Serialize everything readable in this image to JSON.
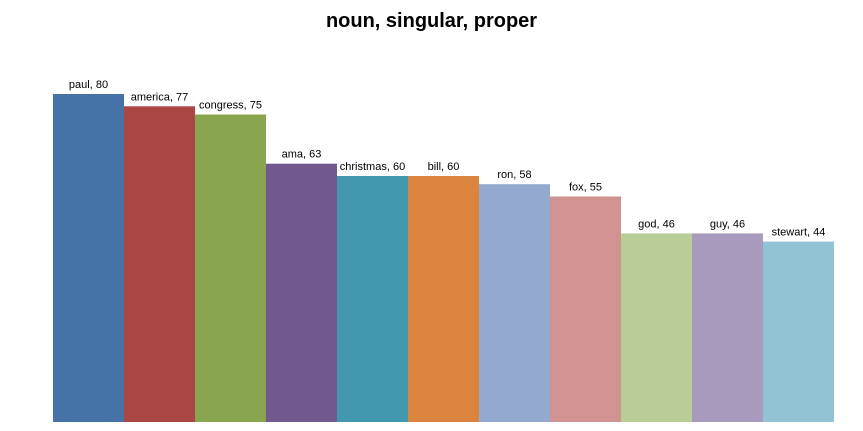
{
  "chart_data": {
    "type": "bar",
    "title": "noun, singular, proper",
    "xlabel": "",
    "ylabel": "",
    "ylim": [
      0,
      80
    ],
    "grid": false,
    "legend": "none",
    "bars": [
      {
        "category": "paul",
        "value": 80,
        "label": "paul, 80",
        "color": "#4572A7"
      },
      {
        "category": "america",
        "value": 77,
        "label": "america, 77",
        "color": "#AA4643"
      },
      {
        "category": "congress",
        "value": 75,
        "label": "congress, 75",
        "color": "#89A54E"
      },
      {
        "category": "ama",
        "value": 63,
        "label": "ama, 63",
        "color": "#71588F"
      },
      {
        "category": "christmas",
        "value": 60,
        "label": "christmas, 60",
        "color": "#4198AF"
      },
      {
        "category": "bill",
        "value": 60,
        "label": "bill, 60",
        "color": "#DB843D"
      },
      {
        "category": "ron",
        "value": 58,
        "label": "ron, 58",
        "color": "#93A9CF"
      },
      {
        "category": "fox",
        "value": 55,
        "label": "fox, 55",
        "color": "#D19392"
      },
      {
        "category": "god",
        "value": 46,
        "label": "god, 46",
        "color": "#B9CD96"
      },
      {
        "category": "guy",
        "value": 46,
        "label": "guy, 46",
        "color": "#A99BBD"
      },
      {
        "category": "stewart",
        "value": 44,
        "label": "stewart, 44",
        "color": "#92C3D5"
      }
    ]
  }
}
